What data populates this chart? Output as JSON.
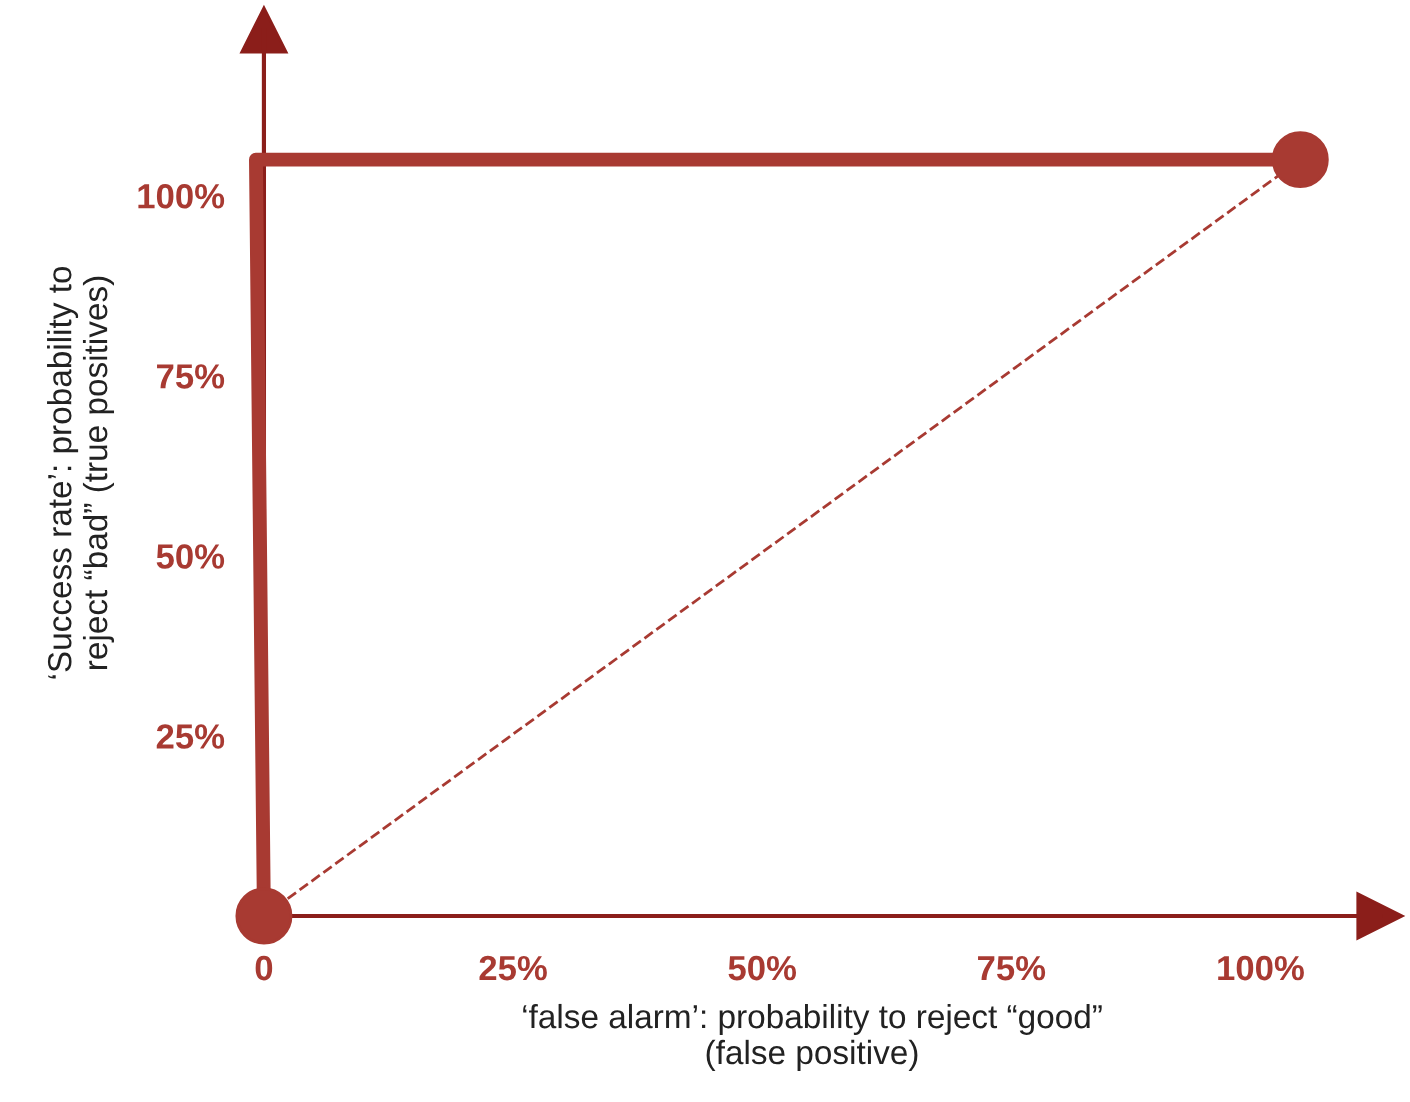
{
  "chart_data": {
    "type": "line",
    "xlabel": "‘false alarm’: probability to reject “good”\n(false positive)",
    "ylabel": "‘Success rate’: probability to\nreject “bad” (true positives)",
    "series": [
      {
        "color": "#a83a32",
        "line_style": "solid",
        "x": [
          0,
          -0.8,
          104
        ],
        "values": [
          0,
          105,
          105
        ]
      },
      {
        "type": "scatter",
        "color": "#a83a32",
        "marker": "circle",
        "x": [
          0,
          104
        ],
        "values": [
          0,
          105
        ]
      },
      {
        "color": "#a83a32",
        "line_style": "dashed",
        "x": [
          0,
          104
        ],
        "values": [
          0,
          105
        ]
      }
    ],
    "grid": false,
    "xlim": [
      -2,
      112
    ],
    "ylim": [
      0,
      123
    ],
    "xticks": [
      {
        "value": 0,
        "label": "0"
      },
      {
        "value": 25,
        "label": "25%"
      },
      {
        "value": 50,
        "label": "50%"
      },
      {
        "value": 75,
        "label": "75%"
      },
      {
        "value": 100,
        "label": "100%"
      }
    ],
    "yticks": [
      {
        "value": 25,
        "label": "25%"
      },
      {
        "value": 50,
        "label": "50%"
      },
      {
        "value": 75,
        "label": "75%"
      },
      {
        "value": 100,
        "label": "100%"
      }
    ]
  }
}
